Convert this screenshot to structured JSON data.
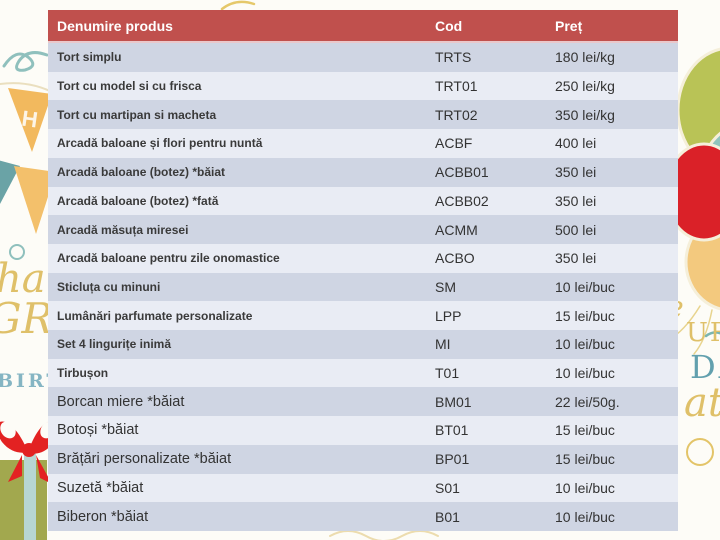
{
  "table": {
    "headers": [
      "Denumire produs",
      "Cod",
      "Preț"
    ],
    "rows": [
      {
        "produs": "Tort simplu",
        "cod": "TRTS",
        "pret": "180 lei/kg",
        "large": false
      },
      {
        "produs": "Tort cu model si cu frisca",
        "cod": "TRT01",
        "pret": "250 lei/kg",
        "large": false
      },
      {
        "produs": "Tort cu martipan si macheta",
        "cod": "TRT02",
        "pret": "350 lei/kg",
        "large": false
      },
      {
        "produs": "Arcadă baloane și flori pentru nuntă",
        "cod": "ACBF",
        "pret": "400 lei",
        "large": false
      },
      {
        "produs": "Arcadă baloane (botez) *băiat",
        "cod": "ACBB01",
        "pret": "350 lei",
        "large": false
      },
      {
        "produs": "Arcadă baloane (botez) *fată",
        "cod": "ACBB02",
        "pret": "350 lei",
        "large": false
      },
      {
        "produs": "Arcadă măsuța miresei",
        "cod": "ACMM",
        "pret": "500 lei",
        "large": false
      },
      {
        "produs": "Arcadă baloane pentru zile onomastice",
        "cod": "ACBO",
        "pret": "350 lei",
        "large": false
      },
      {
        "produs": "Sticluța cu minuni",
        "cod": "SM",
        "pret": "10 lei/buc",
        "large": false
      },
      {
        "produs": "Lumânări parfumate personalizate",
        "cod": "LPP",
        "pret": "15 lei/buc",
        "large": false
      },
      {
        "produs": "Set 4 lingurițe inimă",
        "cod": "MI",
        "pret": "10 lei/buc",
        "large": false
      },
      {
        "produs": "Tirbușon",
        "cod": "T01",
        "pret": "10 lei/buc",
        "large": false
      },
      {
        "produs": "Borcan miere *băiat",
        "cod": "BM01",
        "pret": "22 lei/50g.",
        "large": true
      },
      {
        "produs": "Botoși *băiat",
        "cod": "BT01",
        "pret": "15 lei/buc",
        "large": true
      },
      {
        "produs": "Brățări personalizate *băiat",
        "cod": "BP01",
        "pret": "15 lei/buc",
        "large": true
      },
      {
        "produs": "Suzetă *băiat",
        "cod": "S01",
        "pret": "10 lei/buc",
        "large": true
      },
      {
        "produs": "Biberon *băiat",
        "cod": "B01",
        "pret": "10 lei/buc",
        "large": true
      }
    ]
  },
  "decor": {
    "pennant_letter": "H",
    "script_top_left": "ha",
    "script_mid_left": "GRE",
    "letters_left": "BIRT",
    "script_right_e": "e",
    "letters_right_ur": "UR",
    "letters_right_da": "DA",
    "script_right_at": "at"
  },
  "colors": {
    "header_bg": "#c0504d",
    "header_text": "#ffffff",
    "row_dark": "#cfd5e3",
    "row_light": "#e9ecf4",
    "cell_text": "#333333",
    "accent_orange": "#f2b95e",
    "accent_orange_2": "#f3c06b",
    "accent_teal": "#6aa3a6",
    "balloon_olive": "#b9c356",
    "balloon_teal": "#8fc4bc",
    "balloon_red": "#da2128",
    "balloon_orange": "#f3c97e",
    "gift_green": "#a2a84e",
    "bow_red": "#e32222",
    "ribbon_blue": "#b7d6d2",
    "script_yellow": "#dfc069",
    "letters_blue": "#85b5c3"
  }
}
